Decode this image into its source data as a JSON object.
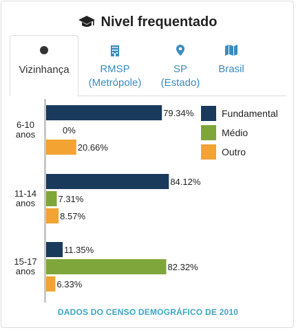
{
  "header": {
    "title": "Nivel frequentado",
    "icon": "graduation-cap-icon"
  },
  "tabs": [
    {
      "label": "Vizinhança",
      "icon": "dot-icon",
      "active": true
    },
    {
      "label": "RMSP (Metrópole)",
      "line1": "RMSP",
      "line2": "(Metrópole)",
      "icon": "building-icon",
      "active": false
    },
    {
      "label": "SP (Estado)",
      "line1": "SP",
      "line2": "(Estado)",
      "icon": "map-pin-icon",
      "active": false
    },
    {
      "label": "Brasil",
      "icon": "map-icon",
      "active": false
    }
  ],
  "colors": {
    "fundamental": "#1a3a5c",
    "medio": "#7fa63a",
    "outro": "#f3a332",
    "accent": "#3a8bbf",
    "footer": "#3aa6c6"
  },
  "chart_data": {
    "type": "bar",
    "orientation": "horizontal",
    "categories": [
      "6-10 anos",
      "11-14 anos",
      "15-17 anos"
    ],
    "category_lines": [
      [
        "6-10",
        "anos"
      ],
      [
        "11-14",
        "anos"
      ],
      [
        "15-17",
        "anos"
      ]
    ],
    "series": [
      {
        "name": "Fundamental",
        "values": [
          79.34,
          84.12,
          11.35
        ],
        "color": "#1a3a5c"
      },
      {
        "name": "Médio",
        "values": [
          0,
          7.31,
          82.32
        ],
        "color": "#7fa63a"
      },
      {
        "name": "Outro",
        "values": [
          20.66,
          8.57,
          6.33
        ],
        "color": "#f3a332"
      }
    ],
    "value_labels": [
      [
        "79.34%",
        "0%",
        "20.66%"
      ],
      [
        "84.12%",
        "7.31%",
        "8.57%"
      ],
      [
        "11.35%",
        "82.32%",
        "6.33%"
      ]
    ],
    "xlim": [
      0,
      100
    ],
    "legend_position": "top-right",
    "grid": false
  },
  "footer": {
    "text": "DADOS DO CENSO DEMOGRÁFICO DE 2010"
  }
}
